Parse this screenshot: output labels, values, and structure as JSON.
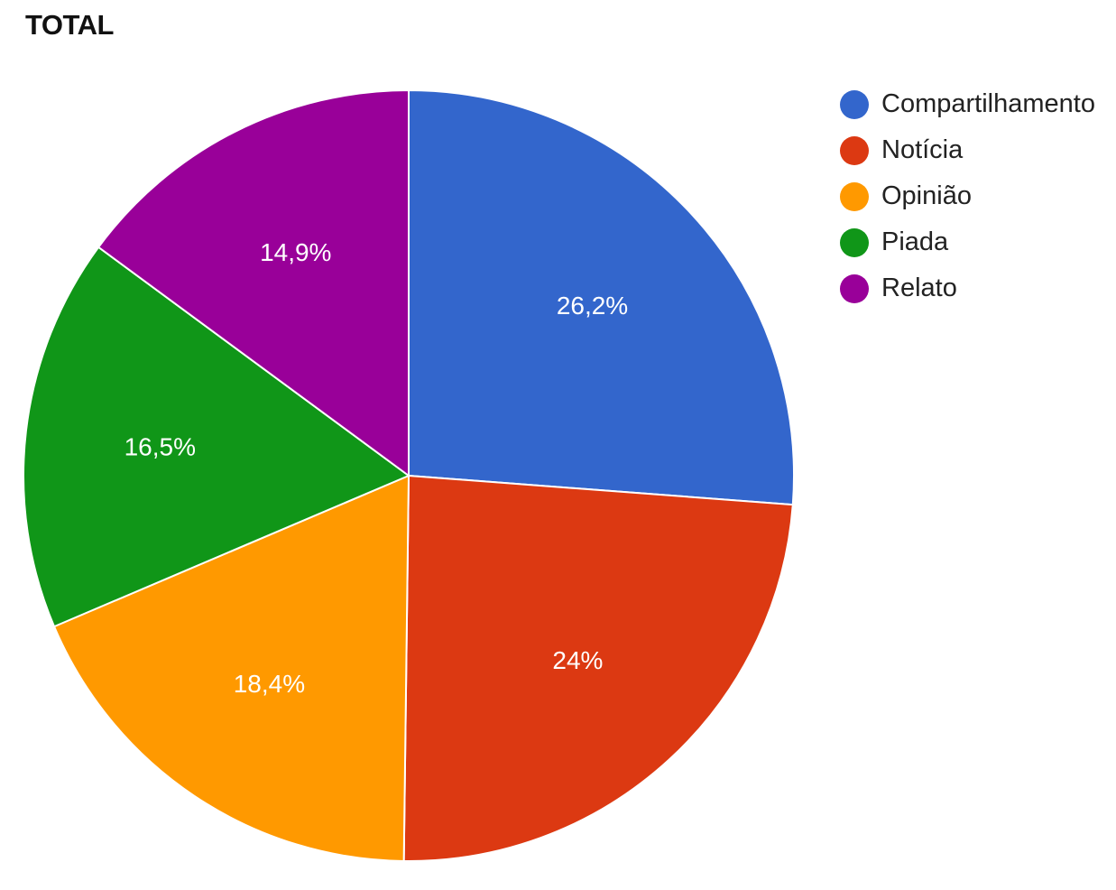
{
  "chart_data": {
    "type": "pie",
    "title": "TOTAL",
    "start_angle_deg": 0,
    "direction": "clockwise",
    "legend_position": "right",
    "slices": [
      {
        "label": "Compartilhamento",
        "value": 26.2,
        "display": "26,2%",
        "color": "#3366cc"
      },
      {
        "label": "Notícia",
        "value": 24.0,
        "display": "24%",
        "color": "#dc3912"
      },
      {
        "label": "Opinião",
        "value": 18.4,
        "display": "18,4%",
        "color": "#ff9900"
      },
      {
        "label": "Piada",
        "value": 16.5,
        "display": "16,5%",
        "color": "#109618"
      },
      {
        "label": "Relato",
        "value": 14.9,
        "display": "14,9%",
        "color": "#990099"
      }
    ]
  }
}
